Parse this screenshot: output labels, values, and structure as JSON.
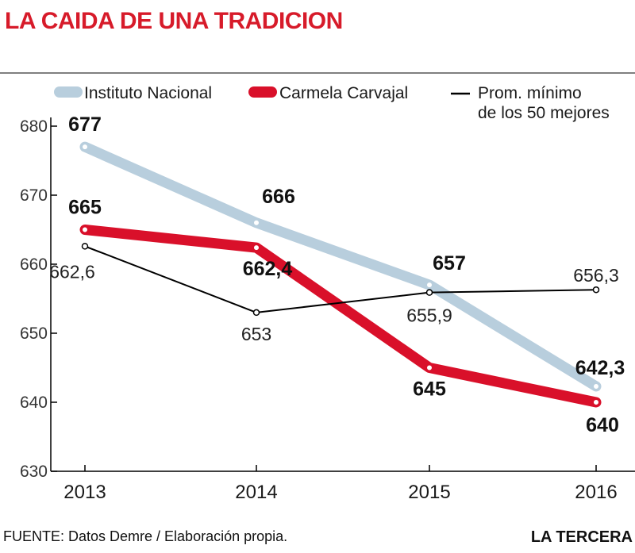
{
  "title": "LA CAIDA DE UNA TRADICION",
  "footer": {
    "source": "FUENTE: Datos Demre / Elaboración propia.",
    "brand": "LA TERCERA"
  },
  "colors": {
    "title": "#d71b2a",
    "instituto": "#b8cedd",
    "carmela": "#d9102a",
    "promedio": "#000000",
    "axis": "#000000",
    "rule": "#555555"
  },
  "chart_data": {
    "type": "line",
    "title": "LA CAIDA DE UNA TRADICION",
    "xlabel": "",
    "ylabel": "",
    "x": [
      "2013",
      "2014",
      "2015",
      "2016"
    ],
    "ylim": [
      630,
      680
    ],
    "yticks": [
      630,
      640,
      650,
      660,
      670,
      680
    ],
    "grid": false,
    "legend_position": "top",
    "series": [
      {
        "name": "Instituto Nacional",
        "values": [
          677,
          666,
          657,
          642.3
        ],
        "labels": [
          "677",
          "666",
          "657",
          "642,3"
        ]
      },
      {
        "name": "Carmela Carvajal",
        "values": [
          665,
          662.4,
          645,
          640
        ],
        "labels": [
          "665",
          "662,4",
          "645",
          "640"
        ]
      },
      {
        "name_lines": [
          "Prom. mínimo",
          "de los 50 mejores"
        ],
        "values": [
          662.6,
          653,
          655.9,
          656.3
        ],
        "labels": [
          "662,6",
          "653",
          "655,9",
          "656,3"
        ]
      }
    ]
  }
}
